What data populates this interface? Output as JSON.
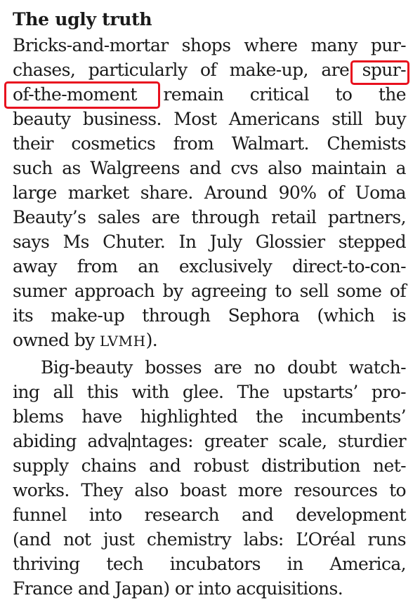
{
  "article": {
    "heading": "The ugly truth",
    "paragraph_1": {
      "lines": [
        "Bricks-and-mortar shops where many pur-",
        "chases, particularly of make-up, are spur-",
        "of-the-moment remain critical to the",
        "beauty business. Most Americans still buy",
        "their cosmetics from Walmart. Chemists",
        "such as Walgreens and cvs also maintain a",
        "large market share. Around 90% of Uoma",
        "Beauty’s sales are through retail partners,",
        "says Ms Chuter. In July Glossier stepped",
        "away from an exclusively direct-to-con-",
        "sumer approach by agreeing to sell some of",
        "its make-up through Sephora (which is",
        "owned by LVMH)."
      ]
    },
    "paragraph_2": {
      "lines": [
        "Big-beauty bosses are no doubt watch-",
        "ing all this with glee. The upstarts’ pro-",
        "blems have highlighted the incumbents’",
        "abiding advantages: greater scale, sturdier",
        "supply chains and robust distribution net-",
        "works. They also boast more resources to",
        "funnel into research and development",
        "(and not just chemistry labs: L’Oréal runs",
        "thriving tech incubators in America,",
        "France and Japan) or into acquisitions."
      ]
    }
  },
  "annotations": {
    "color": "#e8101e",
    "highlighted_phrase": "spur-of-the-moment"
  }
}
